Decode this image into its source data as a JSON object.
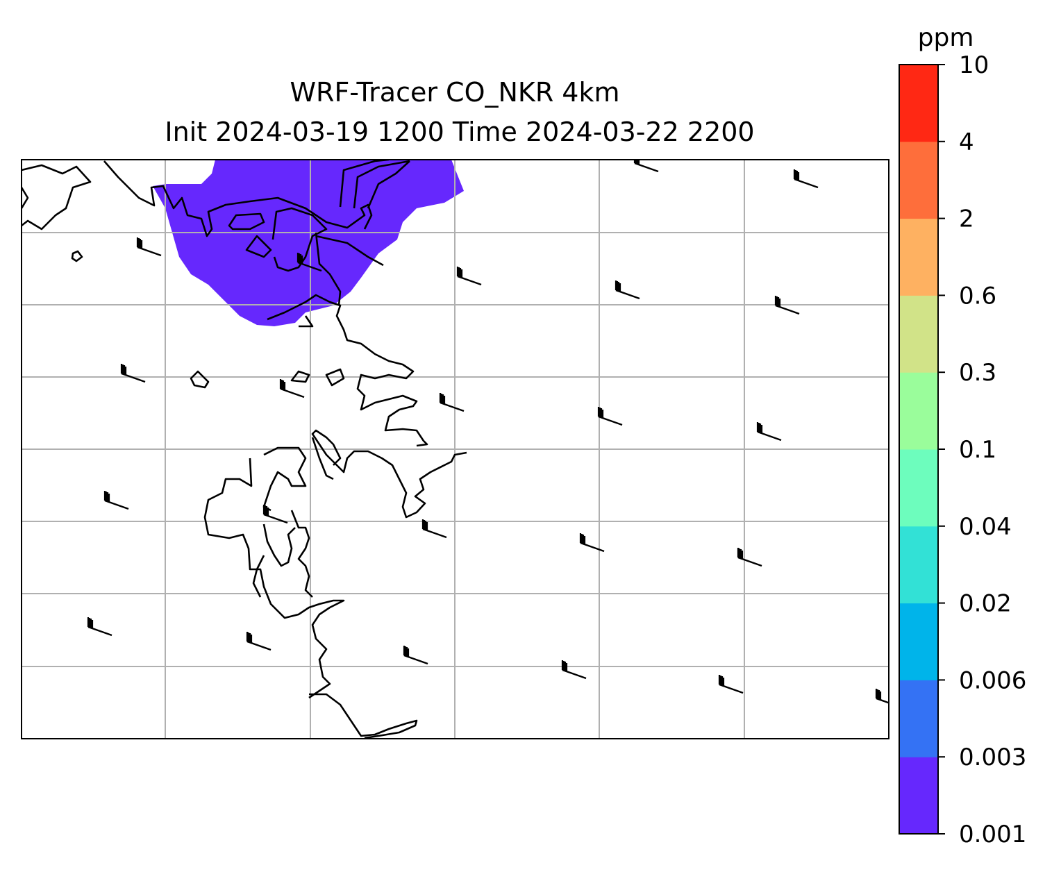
{
  "title": {
    "line1": "WRF-Tracer CO_NKR 4km",
    "line2": "Init 2024-03-19 1200 Time 2024-03-22 2200"
  },
  "colorbar": {
    "unit": "ppm",
    "levels": [
      "0.001",
      "0.003",
      "0.006",
      "0.02",
      "0.04",
      "0.1",
      "0.3",
      "0.6",
      "2",
      "4",
      "10"
    ],
    "colors": [
      "#6628fd",
      "#3472f4",
      "#00b4ea",
      "#32e1d6",
      "#6dfdbd",
      "#9afd9b",
      "#d1e388",
      "#feb161",
      "#fe6e3b",
      "#ff2814"
    ]
  },
  "map": {
    "plume_color": "#6628fd",
    "gridline_color": "#b0b0b0",
    "coastline_color": "#000000"
  }
}
